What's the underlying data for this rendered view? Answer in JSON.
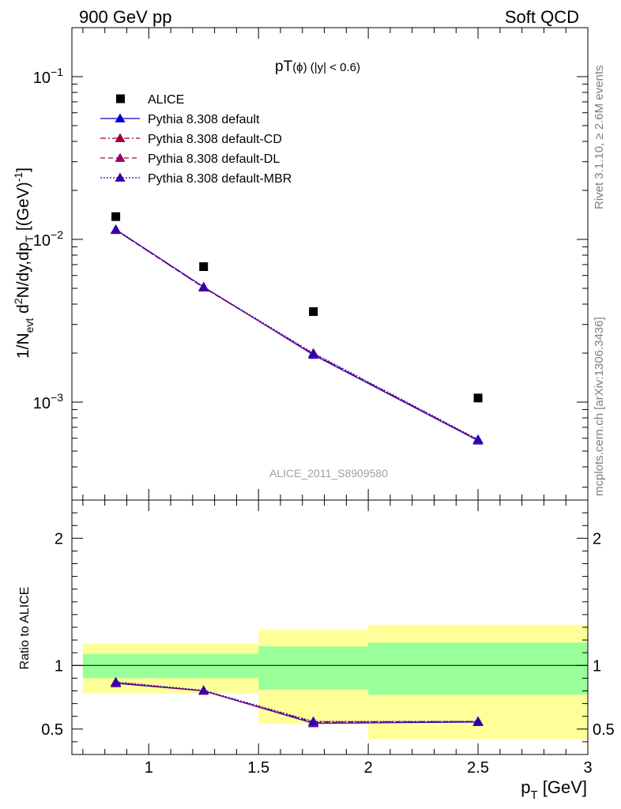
{
  "header": {
    "left": "900 GeV pp",
    "right": "Soft QCD"
  },
  "side_labels": {
    "rivet": "Rivet 3.1.10, ≥ 2.6M events",
    "mcplots": "mcplots.cern.ch [arXiv:1306.3436]"
  },
  "colors": {
    "data": "#000000",
    "default": "#0000cc",
    "cd": "#990033",
    "dl": "#990066",
    "mbr": "#3300aa",
    "band_inner": "#99ff99",
    "band_outer": "#ffff99"
  },
  "chart_data": [
    {
      "type": "scatter",
      "title_main": "pT",
      "title_sub": "(ϕ) (|y| < 0.6)",
      "analysis_label": "ALICE_2011_S8909580",
      "ylabel_main": "1/N",
      "ylabel_sub_evt": "evt",
      "ylabel_mid": " d",
      "ylabel_sup2": "2",
      "ylabel_rest": "N/dy,dp",
      "ylabel_sub_t": "T",
      "ylabel_unit": " [(GeV)",
      "ylabel_unit_sup": "-1",
      "ylabel_close": "]",
      "yscale": "log",
      "xlim": [
        0.65,
        3.0
      ],
      "ylim": [
        0.00025,
        0.2
      ],
      "y_tick_labels": [
        {
          "value": 0.1,
          "base": "10",
          "exp": "−1"
        },
        {
          "value": 0.01,
          "base": "10",
          "exp": "−2"
        },
        {
          "value": 0.001,
          "base": "10",
          "exp": "−3"
        }
      ],
      "legend": "top-left",
      "series": [
        {
          "name": "ALICE",
          "marker": "square",
          "line": "none",
          "color_key": "data",
          "x": [
            0.85,
            1.25,
            1.75,
            2.5
          ],
          "y": [
            0.0138,
            0.0068,
            0.0036,
            0.00106
          ]
        },
        {
          "name": "Pythia 8.308 default",
          "marker": "triangle",
          "line": "solid",
          "color_key": "default",
          "x": [
            0.85,
            1.25,
            1.75,
            2.5
          ],
          "y": [
            0.0115,
            0.0051,
            0.00195,
            0.00058
          ]
        },
        {
          "name": "Pythia 8.308 default-CD",
          "marker": "triangle",
          "line": "dashdot",
          "color_key": "cd",
          "x": [
            0.85,
            1.25,
            1.75,
            2.5
          ],
          "y": [
            0.0114,
            0.00505,
            0.00198,
            0.000585
          ]
        },
        {
          "name": "Pythia 8.308 default-DL",
          "marker": "triangle",
          "line": "dashed",
          "color_key": "dl",
          "x": [
            0.85,
            1.25,
            1.75,
            2.5
          ],
          "y": [
            0.0114,
            0.00505,
            0.00197,
            0.000585
          ]
        },
        {
          "name": "Pythia 8.308 default-MBR",
          "marker": "triangle",
          "line": "dotted",
          "color_key": "mbr",
          "x": [
            0.85,
            1.25,
            1.75,
            2.5
          ],
          "y": [
            0.0115,
            0.0051,
            0.002,
            0.00059
          ]
        }
      ]
    },
    {
      "type": "scatter",
      "ylabel": "Ratio to ALICE",
      "xlabel_main": "p",
      "xlabel_sub": "T",
      "xlabel_unit": " [GeV]",
      "xlim": [
        0.65,
        3.0
      ],
      "ylim": [
        0.3,
        2.3
      ],
      "x_ticks": [
        1,
        1.5,
        2,
        2.5,
        3
      ],
      "x_tick_labels": [
        "1",
        "1.5",
        "2",
        "2.5",
        "3"
      ],
      "y_ticks": [
        0.5,
        1,
        2
      ],
      "y_tick_labels": [
        "0.5",
        "1",
        "2"
      ],
      "reference_line": 1,
      "bands": [
        {
          "x0": 0.7,
          "x1": 1.5,
          "inner": [
            0.9,
            1.09
          ],
          "outer": [
            0.78,
            1.17
          ]
        },
        {
          "x0": 1.5,
          "x1": 2.0,
          "inner": [
            0.81,
            1.15
          ],
          "outer": [
            0.54,
            1.28
          ]
        },
        {
          "x0": 2.0,
          "x1": 3.0,
          "inner": [
            0.77,
            1.18
          ],
          "outer": [
            0.42,
            1.32
          ]
        }
      ],
      "series": [
        {
          "name": "Pythia 8.308 default",
          "color_key": "default",
          "line": "solid",
          "x": [
            0.85,
            1.25,
            1.75,
            2.5
          ],
          "y": [
            0.86,
            0.8,
            0.545,
            0.555
          ]
        },
        {
          "name": "Pythia 8.308 default-CD",
          "color_key": "cd",
          "line": "dashdot",
          "x": [
            0.85,
            1.25,
            1.75,
            2.5
          ],
          "y": [
            0.865,
            0.8,
            0.555,
            0.56
          ]
        },
        {
          "name": "Pythia 8.308 default-DL",
          "color_key": "dl",
          "line": "dashed",
          "x": [
            0.85,
            1.25,
            1.75,
            2.5
          ],
          "y": [
            0.865,
            0.8,
            0.55,
            0.56
          ]
        },
        {
          "name": "Pythia 8.308 default-MBR",
          "color_key": "mbr",
          "line": "dotted",
          "x": [
            0.85,
            1.25,
            1.75,
            2.5
          ],
          "y": [
            0.87,
            0.805,
            0.56,
            0.56
          ]
        }
      ]
    }
  ]
}
